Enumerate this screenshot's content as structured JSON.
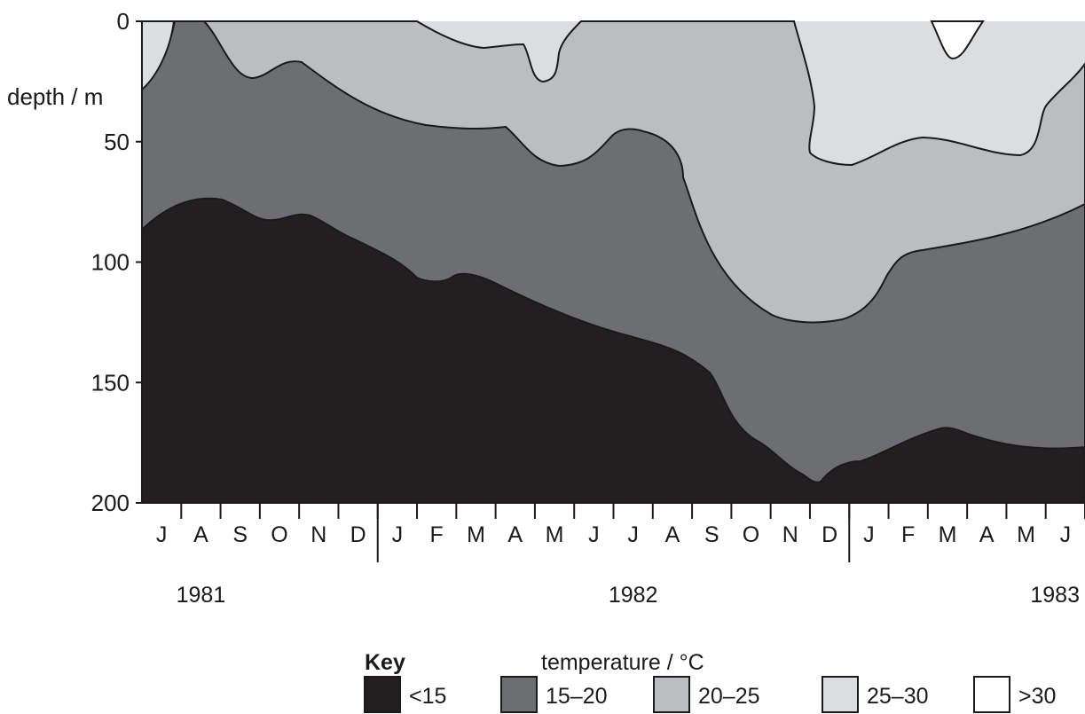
{
  "chart_data": {
    "type": "area",
    "title": "",
    "ylabel": "depth / m",
    "xlabel": "",
    "ylim": [
      0,
      200
    ],
    "y_inverted": true,
    "y_ticks": [
      0,
      50,
      100,
      150,
      200
    ],
    "y_tick_labels": [
      "0",
      "50",
      "100",
      "150",
      "200"
    ],
    "x_months": [
      "J",
      "A",
      "S",
      "O",
      "N",
      "D",
      "J",
      "F",
      "M",
      "A",
      "M",
      "J",
      "J",
      "A",
      "S",
      "O",
      "N",
      "D",
      "J",
      "F",
      "M",
      "A",
      "M",
      "J"
    ],
    "x_start": "1981-06",
    "x_end": "1983-06",
    "years": [
      {
        "label": "1981",
        "from_month": 0,
        "to_month": 5
      },
      {
        "label": "1982",
        "from_month": 6,
        "to_month": 17
      },
      {
        "label": "1983",
        "from_month": 18,
        "to_month": 23
      }
    ],
    "year_label_text": [
      "1981",
      "1982",
      "1983"
    ],
    "layers": [
      {
        "key": "<15",
        "color": "#231f20"
      },
      {
        "key": "15–20",
        "color": "#6d6e71"
      },
      {
        "key": "20–25",
        "color": "#bcbdc0"
      },
      {
        "key": "25–30",
        "color": "#dcdde0"
      },
      {
        "key": ">30",
        "color": "#ffffff"
      }
    ],
    "boundaries": {
      "lt15_top": [
        [
          0,
          86
        ],
        [
          0.5,
          75
        ],
        [
          1,
          73
        ],
        [
          1.5,
          76
        ],
        [
          2,
          81
        ],
        [
          2.5,
          80
        ],
        [
          3,
          87
        ],
        [
          3.5,
          90
        ],
        [
          4,
          94
        ],
        [
          4.5,
          104
        ],
        [
          5,
          106
        ],
        [
          5.5,
          105
        ],
        [
          6,
          110
        ],
        [
          7,
          118
        ],
        [
          8,
          125
        ],
        [
          9,
          131
        ],
        [
          10,
          138
        ],
        [
          10.5,
          145
        ],
        [
          11,
          160
        ],
        [
          11.5,
          174
        ],
        [
          12,
          181
        ],
        [
          12.2,
          186
        ],
        [
          12.5,
          180
        ],
        [
          13,
          177
        ],
        [
          14,
          168
        ],
        [
          14.5,
          163
        ],
        [
          15,
          167
        ],
        [
          16,
          173
        ],
        [
          17,
          174
        ]
      ],
      "c15_20_top": [
        [
          0,
          28
        ],
        [
          0.3,
          5
        ],
        [
          0.5,
          0
        ],
        [
          0.8,
          8
        ],
        [
          1.1,
          18
        ],
        [
          1.5,
          24
        ],
        [
          2,
          17
        ],
        [
          2.5,
          25
        ],
        [
          3,
          34
        ],
        [
          4,
          41
        ],
        [
          5,
          45
        ],
        [
          6,
          44
        ],
        [
          6.5,
          50
        ],
        [
          7,
          58
        ],
        [
          7.5,
          57
        ],
        [
          8,
          51
        ],
        [
          8.5,
          44
        ],
        [
          9,
          50
        ],
        [
          9.5,
          70
        ],
        [
          10,
          90
        ],
        [
          11,
          110
        ],
        [
          12,
          116
        ],
        [
          12.5,
          115
        ],
        [
          13,
          100
        ],
        [
          14,
          92
        ],
        [
          15,
          89
        ],
        [
          16,
          82
        ],
        [
          17,
          68
        ]
      ],
      "c20_25_top": [
        [
          0,
          0
        ],
        [
          0.5,
          0
        ],
        [
          1,
          0
        ],
        [
          2,
          0
        ],
        [
          3,
          0
        ],
        [
          4,
          0
        ],
        [
          4.4,
          1
        ],
        [
          5,
          5
        ],
        [
          5.5,
          8
        ],
        [
          6,
          9
        ],
        [
          6.3,
          13
        ],
        [
          6.8,
          12
        ],
        [
          7,
          23
        ],
        [
          7.5,
          8
        ],
        [
          7.7,
          0
        ],
        [
          9,
          0
        ],
        [
          10,
          0
        ],
        [
          11,
          0
        ],
        [
          12,
          35
        ],
        [
          12.5,
          57
        ],
        [
          13,
          54
        ],
        [
          14,
          48
        ],
        [
          15,
          52
        ],
        [
          15.5,
          55
        ],
        [
          16,
          47
        ],
        [
          16.5,
          40
        ],
        [
          17,
          34
        ]
      ],
      "c25_30_top": [
        [
          0,
          0
        ],
        [
          16,
          0
        ],
        [
          16.3,
          0
        ],
        [
          16.5,
          11
        ],
        [
          16.8,
          15
        ],
        [
          17,
          2
        ],
        [
          17.2,
          0
        ]
      ],
      "note": "depths (m) along time in months after Jun 1981"
    }
  },
  "ui": {
    "ylabel": "depth / m",
    "key_title": "Key",
    "key_unit": "temperature / °C",
    "key_items": [
      "<15",
      "15–20",
      "20–25",
      "25–30",
      ">30"
    ]
  }
}
